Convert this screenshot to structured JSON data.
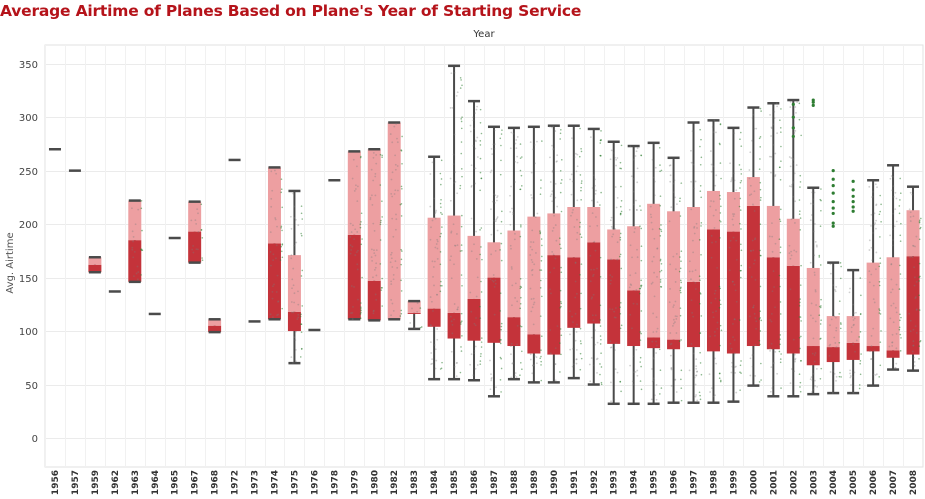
{
  "title": "Average Airtime of Planes Based on Plane's Year of Starting Service",
  "colors": {
    "title": "#b5131a",
    "upper_box": "#ed9fa1",
    "lower_box": "#c4333a",
    "whisker": "#4a4a4a",
    "points": "#2e7d32"
  },
  "chart_data": {
    "type": "box",
    "title": "Average Airtime of Planes Based on Plane's Year of Starting Service",
    "xlabel": "Year",
    "ylabel": "Avg. Airtime",
    "ylim": [
      0,
      360
    ],
    "yticks": [
      0,
      50,
      100,
      150,
      200,
      250,
      300,
      350
    ],
    "grid": "horizontal",
    "categories": [
      "1956",
      "1957",
      "1959",
      "1962",
      "1963",
      "1964",
      "1965",
      "1967",
      "1968",
      "1972",
      "1973",
      "1974",
      "1975",
      "1976",
      "1978",
      "1979",
      "1980",
      "1982",
      "1983",
      "1984",
      "1985",
      "1986",
      "1987",
      "1988",
      "1989",
      "1990",
      "1991",
      "1992",
      "1993",
      "1994",
      "1995",
      "1996",
      "1997",
      "1998",
      "1999",
      "2000",
      "2001",
      "2002",
      "2003",
      "2004",
      "2005",
      "2006",
      "2007",
      "2008"
    ],
    "boxes": [
      {
        "year": "1956",
        "min": 270,
        "q1": 270,
        "median": 270,
        "q3": 270,
        "max": 270
      },
      {
        "year": "1957",
        "min": 250,
        "q1": 250,
        "median": 250,
        "q3": 250,
        "max": 250
      },
      {
        "year": "1959",
        "min": 155,
        "q1": 155,
        "median": 162,
        "q3": 169,
        "max": 169
      },
      {
        "year": "1962",
        "min": 137,
        "q1": 137,
        "median": 137,
        "q3": 137,
        "max": 137
      },
      {
        "year": "1963",
        "min": 146,
        "q1": 146,
        "median": 185,
        "q3": 222,
        "max": 222
      },
      {
        "year": "1964",
        "min": 116,
        "q1": 116,
        "median": 116,
        "q3": 116,
        "max": 116
      },
      {
        "year": "1965",
        "min": 187,
        "q1": 187,
        "median": 187,
        "q3": 187,
        "max": 187
      },
      {
        "year": "1967",
        "min": 164,
        "q1": 164,
        "median": 193,
        "q3": 221,
        "max": 221
      },
      {
        "year": "1968",
        "min": 99,
        "q1": 99,
        "median": 105,
        "q3": 111,
        "max": 111
      },
      {
        "year": "1972",
        "min": 260,
        "q1": 260,
        "median": 260,
        "q3": 260,
        "max": 260
      },
      {
        "year": "1973",
        "min": 109,
        "q1": 109,
        "median": 109,
        "q3": 109,
        "max": 109
      },
      {
        "year": "1974",
        "min": 111,
        "q1": 111,
        "median": 182,
        "q3": 253,
        "max": 253
      },
      {
        "year": "1975",
        "min": 70,
        "q1": 100,
        "median": 118,
        "q3": 171,
        "max": 231
      },
      {
        "year": "1976",
        "min": 101,
        "q1": 101,
        "median": 101,
        "q3": 101,
        "max": 101
      },
      {
        "year": "1978",
        "min": 241,
        "q1": 241,
        "median": 241,
        "q3": 241,
        "max": 241
      },
      {
        "year": "1979",
        "min": 111,
        "q1": 111,
        "median": 190,
        "q3": 268,
        "max": 268
      },
      {
        "year": "1980",
        "min": 110,
        "q1": 110,
        "median": 147,
        "q3": 270,
        "max": 270
      },
      {
        "year": "1982",
        "min": 111,
        "q1": 111,
        "median": 111,
        "q3": 295,
        "max": 295
      },
      {
        "year": "1983",
        "min": 102,
        "q1": 116,
        "median": 117,
        "q3": 128,
        "max": 128
      },
      {
        "year": "1984",
        "min": 55,
        "q1": 104,
        "median": 121,
        "q3": 206,
        "max": 263
      },
      {
        "year": "1985",
        "min": 55,
        "q1": 93,
        "median": 117,
        "q3": 208,
        "max": 348
      },
      {
        "year": "1986",
        "min": 54,
        "q1": 91,
        "median": 130,
        "q3": 189,
        "max": 315
      },
      {
        "year": "1987",
        "min": 39,
        "q1": 89,
        "median": 150,
        "q3": 183,
        "max": 291
      },
      {
        "year": "1988",
        "min": 55,
        "q1": 86,
        "median": 113,
        "q3": 194,
        "max": 290
      },
      {
        "year": "1989",
        "min": 52,
        "q1": 79,
        "median": 97,
        "q3": 207,
        "max": 291
      },
      {
        "year": "1990",
        "min": 52,
        "q1": 78,
        "median": 171,
        "q3": 210,
        "max": 292
      },
      {
        "year": "1991",
        "min": 56,
        "q1": 103,
        "median": 169,
        "q3": 216,
        "max": 292
      },
      {
        "year": "1992",
        "min": 50,
        "q1": 107,
        "median": 183,
        "q3": 216,
        "max": 289
      },
      {
        "year": "1993",
        "min": 32,
        "q1": 88,
        "median": 167,
        "q3": 195,
        "max": 277
      },
      {
        "year": "1994",
        "min": 32,
        "q1": 86,
        "median": 138,
        "q3": 198,
        "max": 273
      },
      {
        "year": "1995",
        "min": 32,
        "q1": 84,
        "median": 94,
        "q3": 219,
        "max": 276
      },
      {
        "year": "1996",
        "min": 33,
        "q1": 83,
        "median": 92,
        "q3": 212,
        "max": 262
      },
      {
        "year": "1997",
        "min": 33,
        "q1": 85,
        "median": 146,
        "q3": 216,
        "max": 295
      },
      {
        "year": "1998",
        "min": 33,
        "q1": 81,
        "median": 195,
        "q3": 231,
        "max": 297
      },
      {
        "year": "1999",
        "min": 34,
        "q1": 79,
        "median": 193,
        "q3": 230,
        "max": 290
      },
      {
        "year": "2000",
        "min": 49,
        "q1": 86,
        "median": 217,
        "q3": 244,
        "max": 309
      },
      {
        "year": "2001",
        "min": 39,
        "q1": 83,
        "median": 169,
        "q3": 217,
        "max": 313
      },
      {
        "year": "2002",
        "min": 39,
        "q1": 79,
        "median": 161,
        "q3": 205,
        "max": 316
      },
      {
        "year": "2003",
        "min": 41,
        "q1": 68,
        "median": 86,
        "q3": 159,
        "max": 234
      },
      {
        "year": "2004",
        "min": 42,
        "q1": 71,
        "median": 85,
        "q3": 114,
        "max": 164
      },
      {
        "year": "2005",
        "min": 42,
        "q1": 73,
        "median": 89,
        "q3": 114,
        "max": 157
      },
      {
        "year": "2006",
        "min": 49,
        "q1": 81,
        "median": 86,
        "q3": 164,
        "max": 241
      },
      {
        "year": "2007",
        "min": 64,
        "q1": 75,
        "median": 82,
        "q3": 169,
        "max": 255
      },
      {
        "year": "2008",
        "min": 63,
        "q1": 78,
        "median": 170,
        "q3": 213,
        "max": 235
      }
    ],
    "outliers": [
      {
        "year": "2002",
        "values": [
          312,
          300,
          290,
          282
        ]
      },
      {
        "year": "2003",
        "values": [
          316,
          314,
          311
        ]
      },
      {
        "year": "2004",
        "values": [
          250,
          242,
          236,
          229,
          221,
          215,
          210,
          201,
          198
        ]
      },
      {
        "year": "2005",
        "values": [
          240,
          232,
          226,
          221,
          216,
          212
        ]
      }
    ]
  }
}
